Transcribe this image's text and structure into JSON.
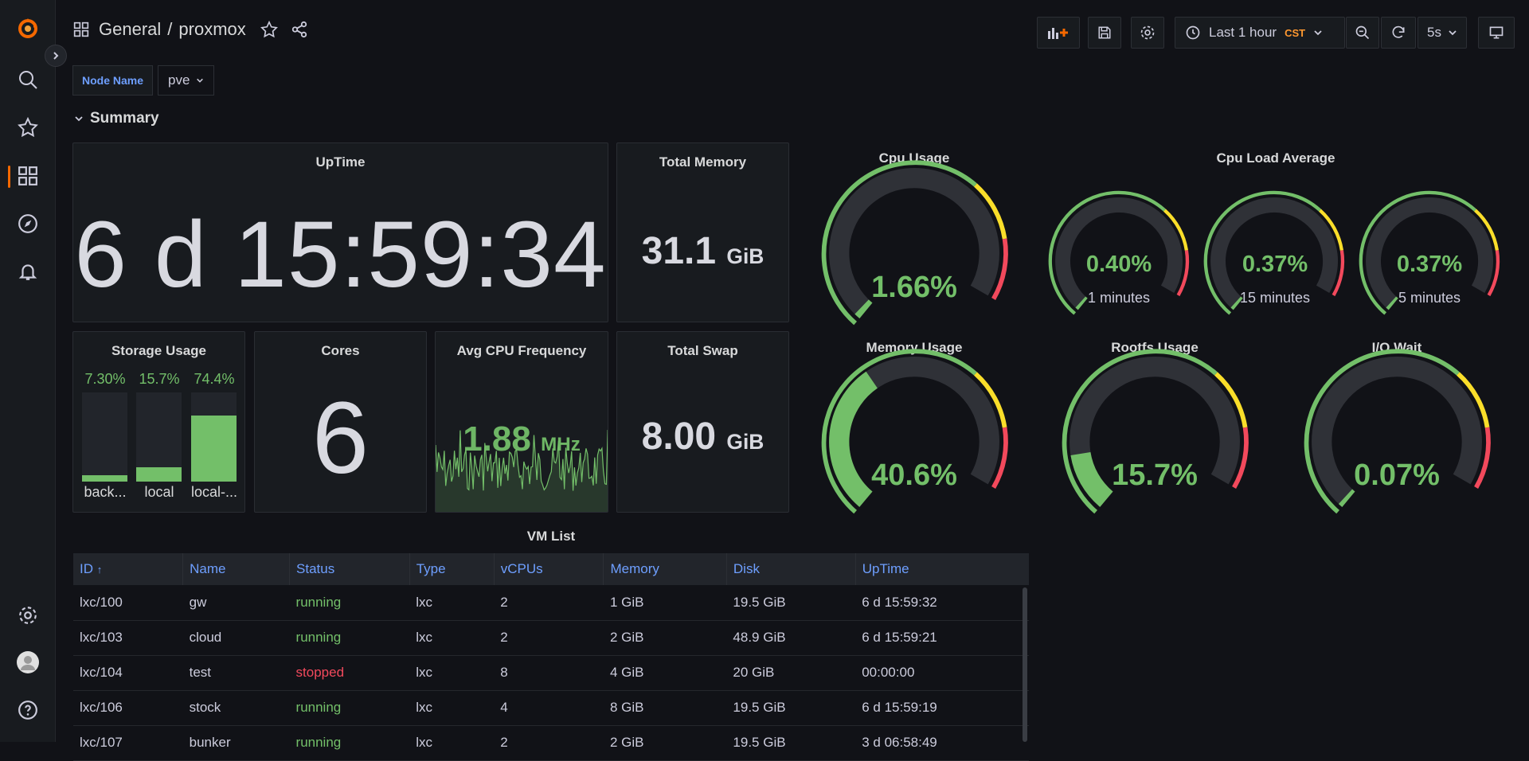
{
  "breadcrumb": {
    "folder": "General",
    "separator": "/",
    "dashboard": "proxmox"
  },
  "toolbar": {
    "time_range": "Last 1 hour",
    "timezone": "CST",
    "refresh_interval": "5s"
  },
  "variables": {
    "node_name_label": "Node Name",
    "node_name_value": "pve"
  },
  "row": {
    "title": "Summary"
  },
  "panels": {
    "uptime": {
      "title": "UpTime",
      "value": "6 d 15:59:34"
    },
    "total_memory": {
      "title": "Total Memory",
      "value": "31.1",
      "unit": "GiB"
    },
    "storage": {
      "title": "Storage Usage",
      "bars": [
        {
          "name": "back...",
          "pct_label": "7.30%",
          "value": 7.3
        },
        {
          "name": "local",
          "pct_label": "15.7%",
          "value": 15.7
        },
        {
          "name": "local-...",
          "pct_label": "74.4%",
          "value": 74.4
        }
      ]
    },
    "cores": {
      "title": "Cores",
      "value": "6"
    },
    "cpu_freq": {
      "title": "Avg CPU Frequency",
      "value": "1.88",
      "unit": "MHz"
    },
    "total_swap": {
      "title": "Total Swap",
      "value": "8.00",
      "unit": "GiB"
    }
  },
  "gauges": {
    "cpu_usage": {
      "title": "Cpu Usage",
      "label": "1.66%",
      "value": 1.66
    },
    "load_title": "Cpu Load Average",
    "load": [
      {
        "label": "0.40%",
        "sub": "1 minutes",
        "value": 0.4
      },
      {
        "label": "0.37%",
        "sub": "15 minutes",
        "value": 0.37
      },
      {
        "label": "0.37%",
        "sub": "5 minutes",
        "value": 0.37
      }
    ],
    "memory": {
      "title": "Memory Usage",
      "label": "40.6%",
      "value": 40.6
    },
    "rootfs": {
      "title": "Rootfs Usage",
      "label": "15.7%",
      "value": 15.7
    },
    "iowait": {
      "title": "I/O Wait",
      "label": "0.07%",
      "value": 0.07
    }
  },
  "vm_list": {
    "title": "VM List",
    "columns": [
      "ID",
      "Name",
      "Status",
      "Type",
      "vCPUs",
      "Memory",
      "Disk",
      "UpTime"
    ],
    "rows": [
      [
        "lxc/100",
        "gw",
        "running",
        "lxc",
        "2",
        "1 GiB",
        "19.5 GiB",
        "6 d 15:59:32"
      ],
      [
        "lxc/103",
        "cloud",
        "running",
        "lxc",
        "2",
        "2 GiB",
        "48.9 GiB",
        "6 d 15:59:21"
      ],
      [
        "lxc/104",
        "test",
        "stopped",
        "lxc",
        "8",
        "4 GiB",
        "20 GiB",
        "00:00:00"
      ],
      [
        "lxc/106",
        "stock",
        "running",
        "lxc",
        "4",
        "8 GiB",
        "19.5 GiB",
        "6 d 15:59:19"
      ],
      [
        "lxc/107",
        "bunker",
        "running",
        "lxc",
        "2",
        "2 GiB",
        "19.5 GiB",
        "3 d 06:58:49"
      ]
    ]
  },
  "colors": {
    "green": "#73bf69",
    "yellow": "#fade2a",
    "orange": "#ff9830",
    "red": "#f2495c",
    "track": "#2f3137",
    "accent": "#f46800",
    "link": "#6e9fff"
  }
}
